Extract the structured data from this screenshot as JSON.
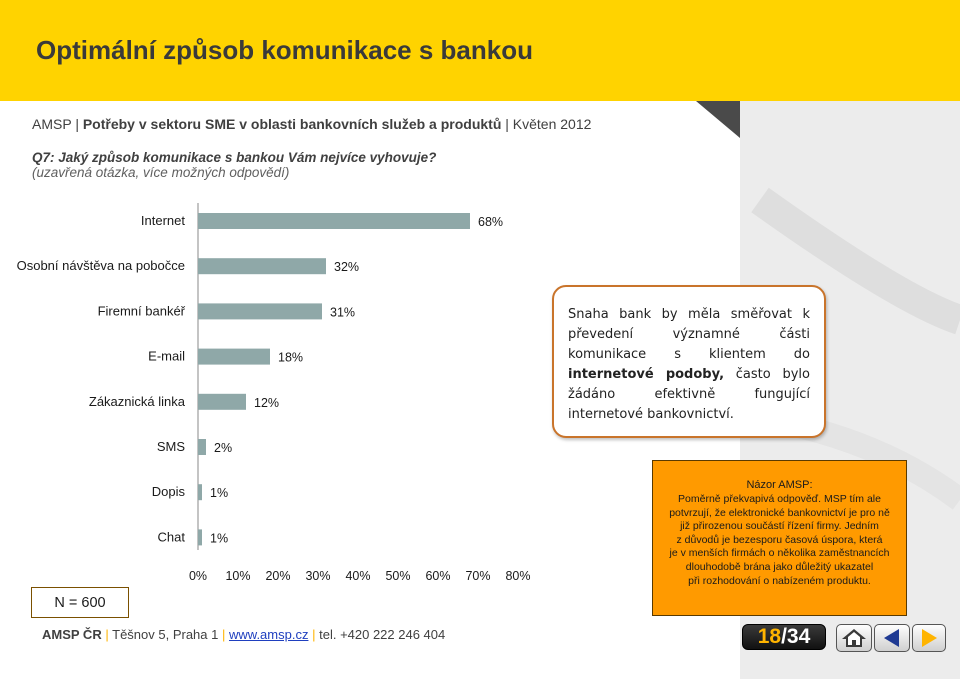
{
  "header": {
    "title": "Optimální způsob komunikace s bankou"
  },
  "source": {
    "prefix": "AMSP | ",
    "report": "Potřeby v sektoru SME v oblasti bankovních služeb a produktů",
    "suffix": " | Květen 2012"
  },
  "question": {
    "text": "Q7: Jaký způsob komunikace s bankou Vám nejvíce vyhovuje?",
    "note": "(uzavřená otázka, více možných odpovědí)"
  },
  "chart_data": {
    "type": "bar",
    "orientation": "horizontal",
    "categories": [
      "Internet",
      "Osobní návštěva na pobočce",
      "Firemní bankéř",
      "E-mail",
      "Zákaznická linka",
      "SMS",
      "Dopis",
      "Chat"
    ],
    "values": [
      68,
      32,
      31,
      18,
      12,
      2,
      1,
      1
    ],
    "value_labels": [
      "68%",
      "32%",
      "31%",
      "18%",
      "12%",
      "2%",
      "1%",
      "1%"
    ],
    "xlim": [
      0,
      80
    ],
    "x_ticks": [
      "0%",
      "10%",
      "20%",
      "30%",
      "40%",
      "50%",
      "60%",
      "70%",
      "80%"
    ],
    "bar_color": "#8fa8a8",
    "grid": false
  },
  "callout": {
    "pre": "Snaha bank by měla směřovat k převedení významné části komunikace s klientem do ",
    "bold": "internetové podoby,",
    "post": " často bylo žádáno efektivně fungující internetové bankovnictví."
  },
  "opinion": {
    "title": "Názor AMSP:",
    "lines": [
      "Poměrně překvapivá odpověď. MSP tím ale",
      "potvrzují, že elektronické bankovnictví je pro ně",
      "již přirozenou součástí řízení firmy. Jedním",
      "z důvodů je bezesporu časová úspora, která",
      "je v menších firmách o několika zaměstnancích",
      "dlouhodobě brána jako důležitý ukazatel",
      "při rozhodování o nabízeném produktu."
    ]
  },
  "sample": {
    "label": "N = 600"
  },
  "footer": {
    "org": "AMSP ČR",
    "sep": "|",
    "address": "Těšnov 5, Praha 1",
    "web": "www.amsp.cz",
    "phone": "tel. +420 222 246 404"
  },
  "nav": {
    "current": "18",
    "total": "/34",
    "buttons": [
      "home-icon",
      "prev-arrow-icon",
      "next-arrow-icon"
    ]
  },
  "colors": {
    "header": "#ffd300",
    "accent": "#ffb400",
    "opinion_bg": "#ff9a00",
    "callout_border": "#c9742b"
  }
}
